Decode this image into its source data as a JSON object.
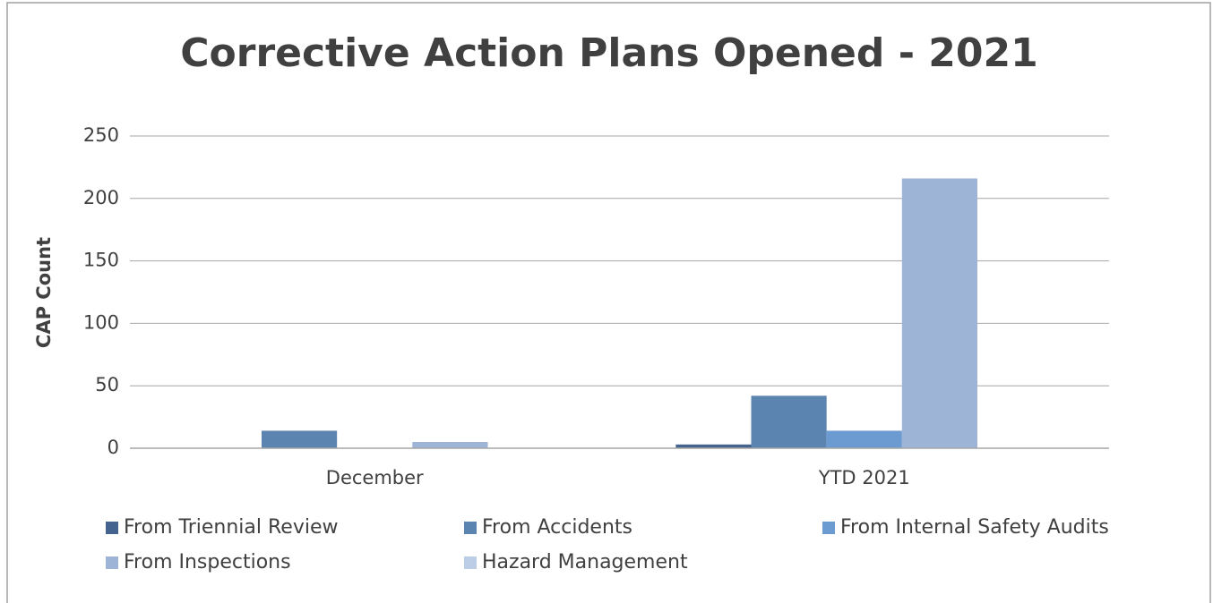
{
  "chart_data": {
    "type": "bar",
    "title": "Corrective Action Plans Opened - 2021",
    "y_label": "CAP Count",
    "categories": [
      "December",
      "YTD 2021"
    ],
    "series": [
      {
        "name": "From Triennial Review",
        "color": "#44648f",
        "values": [
          0,
          3
        ]
      },
      {
        "name": "From Accidents",
        "color": "#5b84b1",
        "values": [
          14,
          42
        ]
      },
      {
        "name": "From Internal Safety Audits",
        "color": "#6b9bd1",
        "values": [
          0,
          14
        ]
      },
      {
        "name": "From Inspections",
        "color": "#9db4d6",
        "values": [
          5,
          216
        ]
      },
      {
        "name": "Hazard Management",
        "color": "#bccde6",
        "values": [
          0,
          0
        ]
      }
    ],
    "ylim": [
      0,
      250
    ],
    "yticks": [
      0,
      50,
      100,
      150,
      200,
      250
    ],
    "grid": true,
    "legend": "bottom"
  }
}
